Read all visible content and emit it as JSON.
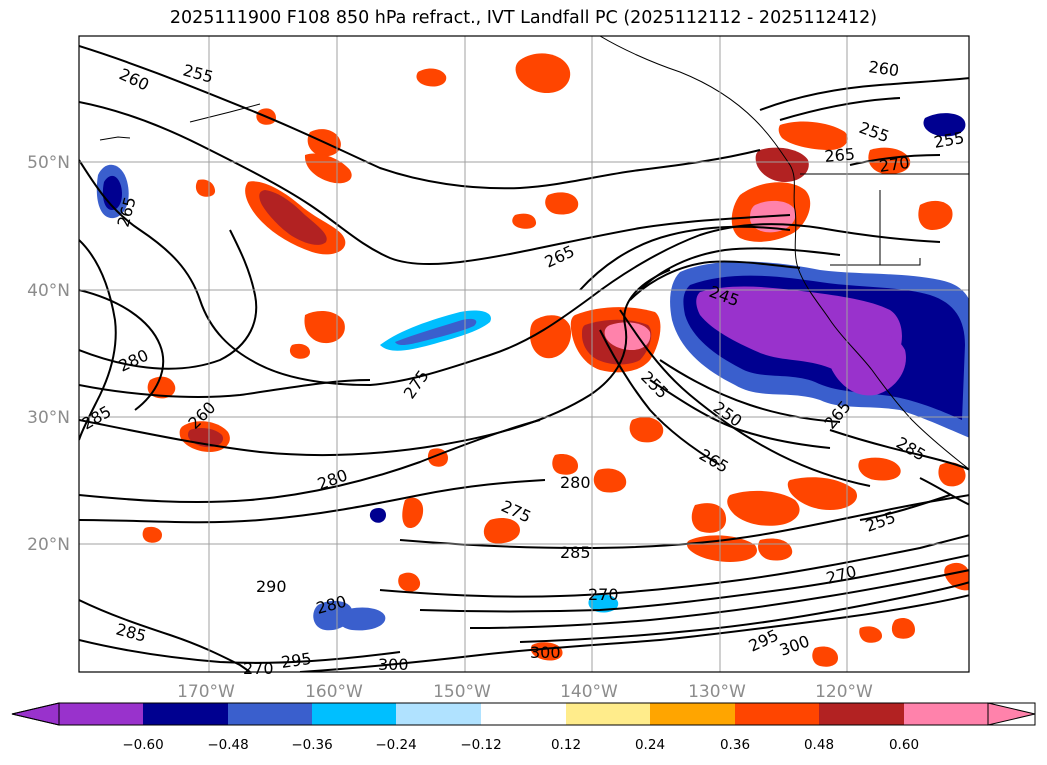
{
  "title": "2025111900 F108 850 hPa refract., IVT Landfall PC (2025112112 - 2025112412)",
  "latitude_labels": [
    "50°N",
    "40°N",
    "30°N",
    "20°N"
  ],
  "longitude_labels": [
    "170°W",
    "160°W",
    "150°W",
    "140°W",
    "130°W",
    "120°W"
  ],
  "colorbar": {
    "tick_labels": [
      "−0.60",
      "−0.48",
      "−0.36",
      "−0.24",
      "−0.12",
      "0.12",
      "0.24",
      "0.36",
      "0.48",
      "0.60"
    ],
    "colors": [
      "#9932cc",
      "#000090",
      "#3a5fcd",
      "#00bfff",
      "#b0e2ff",
      "#ffffff",
      "#ffec8b",
      "#ffa500",
      "#ff4500",
      "#b22222",
      "#ff82ab"
    ]
  },
  "contour_labels": [
    "260",
    "255",
    "265",
    "260",
    "255",
    "265",
    "270",
    "255",
    "265",
    "245",
    "280",
    "275",
    "255",
    "250",
    "285",
    "265",
    "280",
    "275",
    "280",
    "285",
    "290",
    "280",
    "270",
    "260",
    "265",
    "255",
    "285",
    "270",
    "295",
    "300",
    "300",
    "295",
    "300",
    "285",
    "270"
  ],
  "colors": {
    "grid": "#a0a0a0",
    "contour": "#000000"
  }
}
